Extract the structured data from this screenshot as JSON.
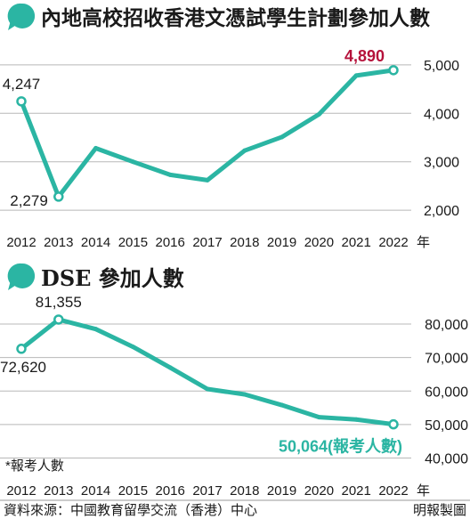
{
  "colors": {
    "line": "#2bb5a3",
    "highlight_red": "#b5123b",
    "highlight_teal": "#2bb5a3",
    "text": "#1a1a1a",
    "grid": "#b8b8b8",
    "bubble": "#2bb5a3"
  },
  "icons": [
    "speech-bubble-icon"
  ],
  "chart_data": [
    {
      "type": "line",
      "title": "內地高校招收香港文憑試學生計劃參加人數",
      "x": [
        2012,
        2013,
        2014,
        2015,
        2016,
        2017,
        2018,
        2019,
        2020,
        2021,
        2022
      ],
      "x_tick_labels": [
        "2012",
        "2013",
        "2014",
        "2015",
        "2016",
        "2017",
        "2018",
        "2019",
        "2020",
        "2021",
        "2022"
      ],
      "x_unit": "年",
      "values": [
        4247,
        2279,
        3280,
        3000,
        2730,
        2620,
        3230,
        3510,
        3980,
        4780,
        4890
      ],
      "y_ticks": [
        2000,
        3000,
        4000,
        5000
      ],
      "y_tick_labels": [
        "2,000",
        "3,000",
        "4,000",
        "5,000"
      ],
      "ylim": [
        1800,
        5200
      ],
      "grid": "horizontal",
      "annotations": [
        {
          "index": 0,
          "text": "4,247"
        },
        {
          "index": 1,
          "text": "2,279"
        },
        {
          "index": 10,
          "text": "4,890"
        }
      ]
    },
    {
      "type": "line",
      "title": "DSE 參加人數",
      "x": [
        2012,
        2013,
        2014,
        2015,
        2016,
        2017,
        2018,
        2019,
        2020,
        2021,
        2022
      ],
      "x_tick_labels": [
        "2012",
        "2013",
        "2014",
        "2015",
        "2016",
        "2017",
        "2018",
        "2019",
        "2020",
        "2021",
        "2022"
      ],
      "x_unit": "年",
      "values": [
        72620,
        81355,
        78500,
        73200,
        67000,
        60600,
        59000,
        55800,
        52200,
        51500,
        50064
      ],
      "y_ticks": [
        40000,
        50000,
        60000,
        70000,
        80000
      ],
      "y_tick_labels": [
        "40,000",
        "50,000",
        "60,000",
        "70,000",
        "80,000"
      ],
      "ylim": [
        38000,
        84000
      ],
      "grid": "horizontal",
      "annotations": [
        {
          "index": 0,
          "text": "72,620"
        },
        {
          "index": 1,
          "text": "81,355"
        },
        {
          "index": 10,
          "text": "50,064(報考人數)"
        }
      ],
      "footnote": "*報考人數"
    }
  ],
  "source": "資料來源：中國教育留學交流（香港）中心",
  "credit": "明報製圖"
}
